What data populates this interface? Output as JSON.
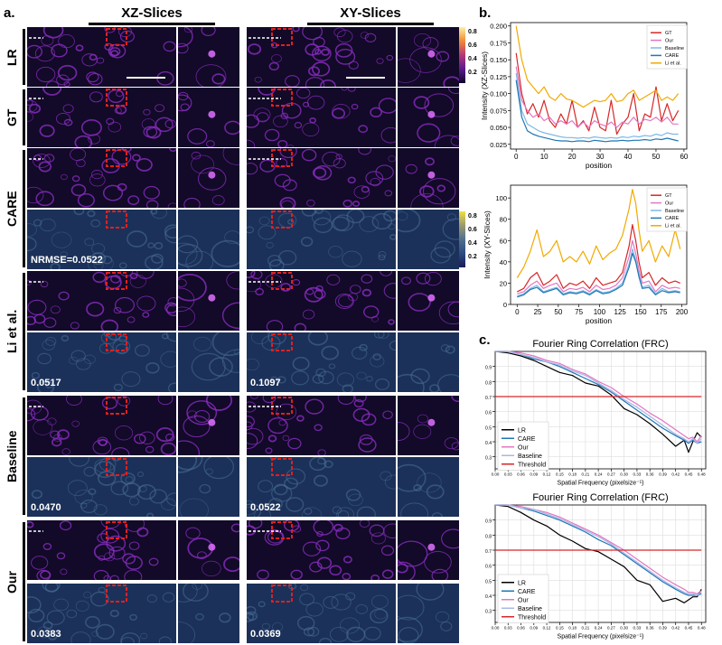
{
  "panel_a": {
    "letter": "a.",
    "col_xz": "XZ-Slices",
    "col_xy": "XY-Slices",
    "rows": [
      {
        "label": "LR",
        "xz_metric": "",
        "xy_metric": ""
      },
      {
        "label": "GT",
        "xz_metric": "",
        "xy_metric": ""
      },
      {
        "label": "CARE",
        "xz_metric": "NRMSE=0.0522",
        "xy_metric": ""
      },
      {
        "label": "Li et al.",
        "xz_metric": "0.0517",
        "xy_metric": "0.1097"
      },
      {
        "label": "Baseline",
        "xz_metric": "0.0470",
        "xy_metric": "0.0522"
      },
      {
        "label": "Our",
        "xz_metric": "0.0383",
        "xy_metric": "0.0369"
      }
    ],
    "colorbar_ticks": [
      "0.8",
      "0.6",
      "0.4",
      "0.2"
    ],
    "colors": {
      "inferno_bg": "#120a28",
      "magma_cell": "#8a2cc0",
      "error_bg": "#1b3159",
      "roi": "#e02020"
    }
  },
  "panel_b": {
    "letter": "b."
  },
  "panel_c": {
    "letter": "c."
  },
  "chart_data": [
    {
      "id": "b1",
      "type": "line",
      "xlabel": "position",
      "ylabel": "Intensity (XZ-Slices)",
      "xlim": [
        -2,
        61
      ],
      "ylim": [
        0.018,
        0.205
      ],
      "xticks": [
        0,
        10,
        20,
        30,
        40,
        50,
        60
      ],
      "yticks": [
        0.025,
        0.05,
        0.075,
        0.1,
        0.125,
        0.15,
        0.175,
        0.2
      ],
      "ytick_labels": [
        "0.025",
        "0.050",
        "0.075",
        "0.100",
        "0.125",
        "0.150",
        "0.175",
        "0.200"
      ],
      "legend_position": "top-right",
      "grid": false,
      "x": [
        0,
        2,
        4,
        6,
        8,
        10,
        12,
        14,
        16,
        18,
        20,
        22,
        24,
        26,
        28,
        30,
        32,
        34,
        36,
        38,
        40,
        42,
        44,
        46,
        48,
        50,
        52,
        54,
        56,
        58
      ],
      "series": [
        {
          "name": "GT",
          "color": "#d62728",
          "values": [
            0.16,
            0.1,
            0.07,
            0.085,
            0.065,
            0.09,
            0.06,
            0.05,
            0.07,
            0.055,
            0.09,
            0.05,
            0.06,
            0.045,
            0.08,
            0.05,
            0.045,
            0.09,
            0.04,
            0.055,
            0.065,
            0.1,
            0.045,
            0.07,
            0.065,
            0.11,
            0.06,
            0.085,
            0.06,
            0.075
          ]
        },
        {
          "name": "Our",
          "color": "#e377c2",
          "values": [
            0.14,
            0.09,
            0.075,
            0.065,
            0.07,
            0.06,
            0.065,
            0.055,
            0.06,
            0.055,
            0.06,
            0.05,
            0.058,
            0.05,
            0.06,
            0.055,
            0.052,
            0.058,
            0.05,
            0.058,
            0.055,
            0.065,
            0.055,
            0.062,
            0.06,
            0.065,
            0.058,
            0.065,
            0.055,
            0.055
          ]
        },
        {
          "name": "Baseline",
          "color": "#7fb8e6",
          "values": [
            0.13,
            0.075,
            0.055,
            0.05,
            0.045,
            0.042,
            0.04,
            0.038,
            0.036,
            0.035,
            0.035,
            0.034,
            0.035,
            0.034,
            0.036,
            0.035,
            0.034,
            0.035,
            0.034,
            0.036,
            0.035,
            0.037,
            0.036,
            0.038,
            0.037,
            0.04,
            0.038,
            0.042,
            0.04,
            0.04
          ]
        },
        {
          "name": "CARE",
          "color": "#1f77b4",
          "values": [
            0.12,
            0.065,
            0.045,
            0.04,
            0.037,
            0.035,
            0.033,
            0.031,
            0.03,
            0.03,
            0.029,
            0.03,
            0.03,
            0.029,
            0.031,
            0.03,
            0.029,
            0.03,
            0.03,
            0.031,
            0.03,
            0.031,
            0.031,
            0.032,
            0.031,
            0.033,
            0.032,
            0.034,
            0.032,
            0.03
          ]
        },
        {
          "name": "Li et al.",
          "color": "#f2a900",
          "values": [
            0.2,
            0.15,
            0.12,
            0.11,
            0.1,
            0.11,
            0.095,
            0.09,
            0.1,
            0.092,
            0.09,
            0.085,
            0.08,
            0.085,
            0.09,
            0.088,
            0.09,
            0.1,
            0.088,
            0.09,
            0.1,
            0.105,
            0.09,
            0.095,
            0.1,
            0.105,
            0.09,
            0.095,
            0.09,
            0.1
          ]
        }
      ]
    },
    {
      "id": "b2",
      "type": "line",
      "xlabel": "position",
      "ylabel": "Intensity (XY-Slices)",
      "xlim": [
        -8,
        206
      ],
      "ylim": [
        0,
        112
      ],
      "xticks": [
        0,
        25,
        50,
        75,
        100,
        125,
        150,
        175,
        200
      ],
      "yticks": [
        0,
        20,
        40,
        60,
        80,
        100
      ],
      "ytick_labels": [
        "0",
        "20",
        "40",
        "60",
        "80",
        "100"
      ],
      "legend_position": "top-right",
      "grid": false,
      "x": [
        0,
        8,
        16,
        24,
        32,
        40,
        48,
        56,
        64,
        72,
        80,
        88,
        96,
        104,
        112,
        120,
        128,
        136,
        140,
        144,
        148,
        152,
        160,
        168,
        176,
        184,
        192,
        198
      ],
      "series": [
        {
          "name": "GT",
          "color": "#d62728",
          "values": [
            12,
            15,
            25,
            30,
            18,
            22,
            28,
            15,
            20,
            18,
            22,
            15,
            25,
            18,
            20,
            22,
            30,
            55,
            75,
            60,
            40,
            25,
            30,
            18,
            25,
            20,
            22,
            20
          ]
        },
        {
          "name": "Our",
          "color": "#e377c2",
          "values": [
            10,
            12,
            18,
            22,
            15,
            18,
            20,
            12,
            15,
            14,
            16,
            12,
            18,
            14,
            15,
            18,
            25,
            45,
            60,
            48,
            32,
            20,
            22,
            12,
            18,
            15,
            16,
            15
          ]
        },
        {
          "name": "Baseline",
          "color": "#7fb8e6",
          "values": [
            8,
            10,
            15,
            18,
            12,
            14,
            16,
            10,
            12,
            11,
            13,
            10,
            14,
            11,
            12,
            15,
            20,
            38,
            52,
            42,
            28,
            16,
            18,
            10,
            15,
            12,
            13,
            12
          ]
        },
        {
          "name": "CARE",
          "color": "#1f77b4",
          "values": [
            7,
            9,
            14,
            16,
            11,
            13,
            15,
            9,
            11,
            10,
            12,
            9,
            13,
            10,
            11,
            14,
            18,
            35,
            48,
            40,
            26,
            15,
            16,
            9,
            13,
            11,
            12,
            11
          ]
        },
        {
          "name": "Li et al.",
          "color": "#f2a900",
          "values": [
            25,
            35,
            50,
            70,
            45,
            50,
            60,
            40,
            45,
            40,
            50,
            38,
            55,
            42,
            48,
            52,
            65,
            90,
            108,
            95,
            70,
            50,
            60,
            40,
            55,
            45,
            70,
            52
          ]
        }
      ]
    },
    {
      "id": "c1",
      "type": "line",
      "title": "Fourier Ring Correlation (FRC)",
      "xlabel": "Spatial Frequency (pixelsize⁻¹)",
      "xlim": [
        0,
        0.49
      ],
      "ylim": [
        0.22,
        1.0
      ],
      "xticks": [
        0,
        0.03,
        0.06,
        0.09,
        0.12,
        0.15,
        0.18,
        0.21,
        0.24,
        0.27,
        0.3,
        0.33,
        0.36,
        0.39,
        0.42,
        0.45,
        0.48
      ],
      "xtick_labels": [
        "0.00",
        "0.03",
        "0.06",
        "0.09",
        "0.12",
        "0.15",
        "0.18",
        "0.21",
        "0.24",
        "0.27",
        "0.30",
        "0.33",
        "0.36",
        "0.39",
        "0.42",
        "0.45",
        "0.48"
      ],
      "yticks": [
        0.3,
        0.4,
        0.5,
        0.6,
        0.7,
        0.8,
        0.9
      ],
      "ytick_labels": [
        "0.3",
        "0.4",
        "0.5",
        "0.6",
        "0.7",
        "0.8",
        "0.9"
      ],
      "grid": true,
      "legend_position": "bottom-left",
      "x": [
        0,
        0.03,
        0.06,
        0.09,
        0.12,
        0.15,
        0.18,
        0.21,
        0.24,
        0.27,
        0.3,
        0.33,
        0.36,
        0.39,
        0.42,
        0.44,
        0.45,
        0.46,
        0.47,
        0.48
      ],
      "series": [
        {
          "name": "LR",
          "color": "#000000",
          "values": [
            1.0,
            0.99,
            0.97,
            0.94,
            0.9,
            0.86,
            0.84,
            0.79,
            0.77,
            0.71,
            0.62,
            0.58,
            0.52,
            0.45,
            0.37,
            0.41,
            0.33,
            0.4,
            0.46,
            0.43
          ]
        },
        {
          "name": "CARE",
          "color": "#1f77b4",
          "values": [
            1.0,
            1.0,
            0.98,
            0.95,
            0.93,
            0.9,
            0.86,
            0.82,
            0.78,
            0.73,
            0.67,
            0.61,
            0.55,
            0.49,
            0.44,
            0.41,
            0.39,
            0.41,
            0.39,
            0.4
          ]
        },
        {
          "name": "Our",
          "color": "#e377c2",
          "values": [
            1.0,
            1.0,
            0.99,
            0.97,
            0.94,
            0.92,
            0.88,
            0.85,
            0.8,
            0.76,
            0.7,
            0.65,
            0.59,
            0.54,
            0.48,
            0.44,
            0.42,
            0.43,
            0.4,
            0.44
          ]
        },
        {
          "name": "Baseline",
          "color": "#a9b7e8",
          "values": [
            1.0,
            1.0,
            0.98,
            0.96,
            0.93,
            0.91,
            0.87,
            0.84,
            0.79,
            0.74,
            0.68,
            0.63,
            0.57,
            0.51,
            0.45,
            0.42,
            0.4,
            0.42,
            0.39,
            0.42
          ]
        },
        {
          "name": "Threshold",
          "color": "#d62728",
          "values": [
            0.7,
            0.7,
            0.7,
            0.7,
            0.7,
            0.7,
            0.7,
            0.7,
            0.7,
            0.7,
            0.7,
            0.7,
            0.7,
            0.7,
            0.7,
            0.7,
            0.7,
            0.7,
            0.7,
            0.7
          ]
        }
      ]
    },
    {
      "id": "c2",
      "type": "line",
      "title": "Fourier Ring Correlation (FRC)",
      "xlabel": "Spatial Frequency (pixelsize⁻¹)",
      "xlim": [
        0,
        0.49
      ],
      "ylim": [
        0.22,
        1.0
      ],
      "xticks": [
        0,
        0.03,
        0.06,
        0.09,
        0.12,
        0.15,
        0.18,
        0.21,
        0.24,
        0.27,
        0.3,
        0.33,
        0.36,
        0.39,
        0.42,
        0.45,
        0.48
      ],
      "xtick_labels": [
        "0.00",
        "0.03",
        "0.06",
        "0.09",
        "0.12",
        "0.15",
        "0.18",
        "0.21",
        "0.24",
        "0.27",
        "0.30",
        "0.33",
        "0.36",
        "0.39",
        "0.42",
        "0.45",
        "0.48"
      ],
      "yticks": [
        0.3,
        0.4,
        0.5,
        0.6,
        0.7,
        0.8,
        0.9
      ],
      "ytick_labels": [
        "0.3",
        "0.4",
        "0.5",
        "0.6",
        "0.7",
        "0.8",
        "0.9"
      ],
      "grid": true,
      "legend_position": "bottom-left",
      "x": [
        0,
        0.03,
        0.06,
        0.09,
        0.12,
        0.15,
        0.18,
        0.21,
        0.24,
        0.27,
        0.3,
        0.33,
        0.36,
        0.39,
        0.42,
        0.44,
        0.45,
        0.46,
        0.47,
        0.48
      ],
      "series": [
        {
          "name": "LR",
          "color": "#000000",
          "values": [
            1.0,
            0.99,
            0.95,
            0.9,
            0.86,
            0.8,
            0.76,
            0.71,
            0.69,
            0.64,
            0.59,
            0.5,
            0.47,
            0.36,
            0.38,
            0.35,
            0.37,
            0.39,
            0.39,
            0.44
          ]
        },
        {
          "name": "CARE",
          "color": "#1f77b4",
          "values": [
            1.0,
            1.0,
            0.98,
            0.96,
            0.93,
            0.9,
            0.86,
            0.82,
            0.77,
            0.73,
            0.67,
            0.61,
            0.55,
            0.49,
            0.44,
            0.41,
            0.4,
            0.4,
            0.4,
            0.41
          ]
        },
        {
          "name": "Our",
          "color": "#e377c2",
          "values": [
            1.0,
            1.0,
            0.99,
            0.97,
            0.95,
            0.92,
            0.88,
            0.84,
            0.8,
            0.75,
            0.7,
            0.64,
            0.58,
            0.52,
            0.47,
            0.44,
            0.42,
            0.42,
            0.41,
            0.43
          ]
        },
        {
          "name": "Baseline",
          "color": "#a9b7e8",
          "values": [
            1.0,
            1.0,
            0.98,
            0.97,
            0.94,
            0.91,
            0.87,
            0.83,
            0.79,
            0.74,
            0.68,
            0.62,
            0.56,
            0.5,
            0.45,
            0.42,
            0.41,
            0.41,
            0.4,
            0.42
          ]
        },
        {
          "name": "Threshold",
          "color": "#d62728",
          "values": [
            0.7,
            0.7,
            0.7,
            0.7,
            0.7,
            0.7,
            0.7,
            0.7,
            0.7,
            0.7,
            0.7,
            0.7,
            0.7,
            0.7,
            0.7,
            0.7,
            0.7,
            0.7,
            0.7,
            0.7
          ]
        }
      ]
    }
  ]
}
